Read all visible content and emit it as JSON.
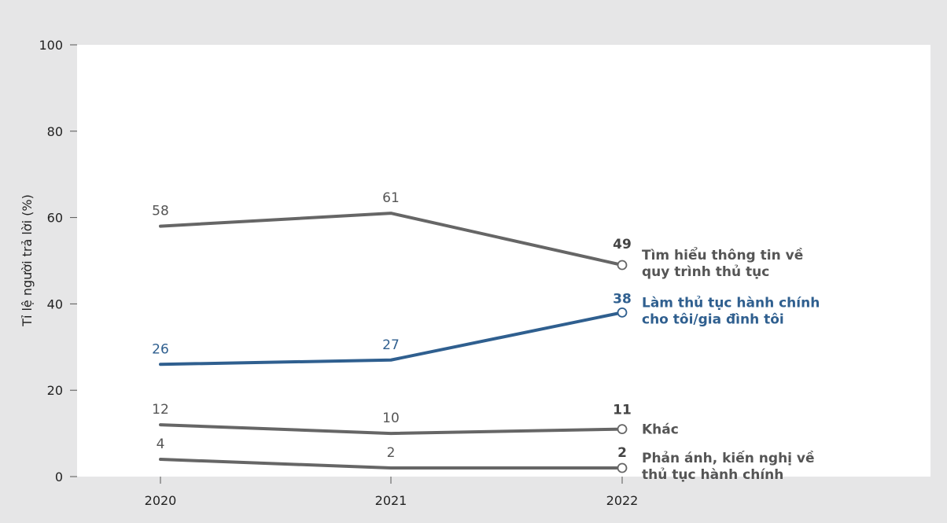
{
  "chart_data": {
    "type": "line",
    "ylabel": "Tỉ lệ người trả lời (%)",
    "xlabel": "",
    "ylim": [
      0,
      100
    ],
    "yticks": [
      0,
      20,
      40,
      60,
      80,
      100
    ],
    "x": [
      "2020",
      "2021",
      "2022"
    ],
    "grid": false,
    "series": [
      {
        "name": "Tìm hiểu thông tin về quy trình thủ tục",
        "name_lines": [
          "Tìm hiểu thông tin về",
          "quy trình thủ tục"
        ],
        "values": [
          58,
          61,
          49
        ],
        "labels": [
          "58",
          "61",
          "49"
        ],
        "color": "#666666"
      },
      {
        "name": "Làm thủ tục hành chính cho tôi/gia đình tôi",
        "name_lines": [
          "Làm thủ tục hành chính",
          "cho tôi/gia đình tôi"
        ],
        "values": [
          26,
          27,
          38
        ],
        "labels": [
          "26",
          "27",
          "38"
        ],
        "color": "#2f5f8f"
      },
      {
        "name": "Khác",
        "name_lines": [
          "Khác"
        ],
        "values": [
          12,
          10,
          11
        ],
        "labels": [
          "12",
          "10",
          "11"
        ],
        "color": "#666666"
      },
      {
        "name": "Phản ánh, kiến nghị về thủ tục hành chính",
        "name_lines": [
          "Phản ánh, kiến nghị về",
          "thủ tục hành chính"
        ],
        "values": [
          4,
          2,
          2
        ],
        "labels": [
          "4",
          "2",
          "2"
        ],
        "color": "#666666"
      }
    ]
  },
  "colors": {
    "background": "#e6e6e7",
    "plot_background": "#ffffff",
    "axis": "#555555"
  }
}
